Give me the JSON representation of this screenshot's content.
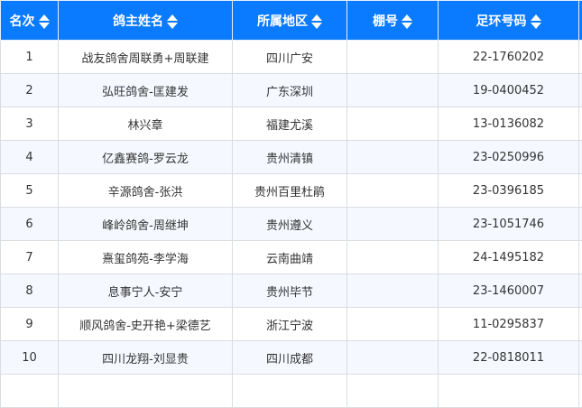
{
  "columns": [
    "名次",
    "鸽主姓名",
    "所属地区",
    "棚号",
    "足环号码"
  ],
  "rows": [
    {
      "rank": "1",
      "name": "战友鸽舍周联勇+周联建",
      "region": "四川广安",
      "loft": "",
      "ring": "22-1760202"
    },
    {
      "rank": "2",
      "name": "弘旺鸽舍-匡建发",
      "region": "广东深圳",
      "loft": "",
      "ring": "19-0400452"
    },
    {
      "rank": "3",
      "name": "林兴章",
      "region": "福建尤溪",
      "loft": "",
      "ring": "13-0136082"
    },
    {
      "rank": "4",
      "name": "亿鑫赛鸽-罗云龙",
      "region": "贵州清镇",
      "loft": "",
      "ring": "23-0250996"
    },
    {
      "rank": "5",
      "name": "辛源鸽舍-张洪",
      "region": "贵州百里杜鹃",
      "loft": "",
      "ring": "23-0396185"
    },
    {
      "rank": "6",
      "name": "峰岭鸽舍-周继坤",
      "region": "贵州遵义",
      "loft": "",
      "ring": "23-1051746"
    },
    {
      "rank": "7",
      "name": "熹玺鸽苑-李学海",
      "region": "云南曲靖",
      "loft": "",
      "ring": "24-1495182"
    },
    {
      "rank": "8",
      "name": "息事宁人-安宁",
      "region": "贵州毕节",
      "loft": "",
      "ring": "23-1460007"
    },
    {
      "rank": "9",
      "name": "顺风鸽舍-史开艳+梁德艺",
      "region": "浙江宁波",
      "loft": "",
      "ring": "11-0295837"
    },
    {
      "rank": "10",
      "name": "四川龙翔-刘显贵",
      "region": "四川成都",
      "loft": "",
      "ring": "22-0818011"
    }
  ],
  "colors": {
    "header": "#0a7bff",
    "alt_row": "#f5f9ff"
  }
}
